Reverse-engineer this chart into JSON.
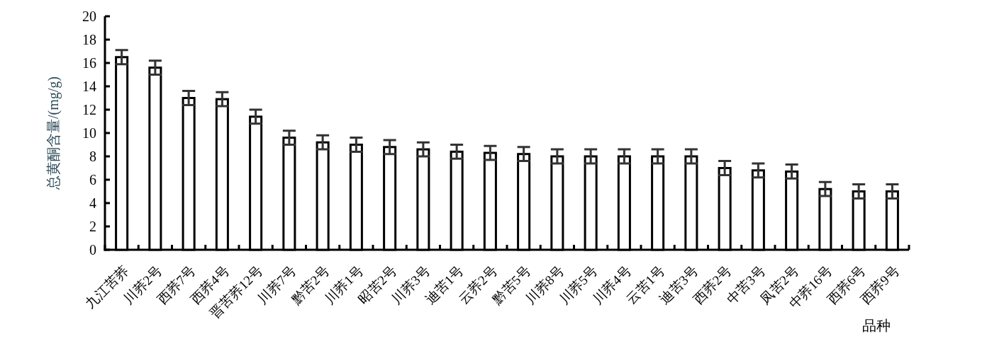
{
  "chart_data": {
    "type": "bar",
    "categories": [
      "九江苦荞",
      "川荞2号",
      "西荞7号",
      "西荞4号",
      "晋苦荞12号",
      "川荞7号",
      "黔苦2号",
      "川荞1号",
      "昭苦2号",
      "川荞3号",
      "迪苦1号",
      "云荞2号",
      "黔苦5号",
      "川荞8号",
      "川荞5号",
      "川荞4号",
      "云苦1号",
      "迪苦3号",
      "西荞2号",
      "中苦3号",
      "凤苦2号",
      "中荞16号",
      "西荞6号",
      "西荞9号"
    ],
    "values": [
      16.5,
      15.6,
      13.0,
      12.9,
      11.4,
      9.6,
      9.2,
      9.0,
      8.8,
      8.6,
      8.4,
      8.3,
      8.2,
      8.0,
      8.0,
      8.0,
      8.0,
      8.0,
      7.0,
      6.8,
      6.7,
      5.2,
      5.0,
      5.0
    ],
    "errors": [
      0.6,
      0.6,
      0.6,
      0.6,
      0.6,
      0.6,
      0.6,
      0.6,
      0.6,
      0.6,
      0.6,
      0.6,
      0.6,
      0.6,
      0.6,
      0.6,
      0.6,
      0.6,
      0.6,
      0.6,
      0.6,
      0.6,
      0.6,
      0.6
    ],
    "color": "#ffffff",
    "xlabel": "品种",
    "ylabel": "总黄酮含量/(mg/g)",
    "ylim": [
      0,
      20
    ],
    "yticks": [
      0,
      2,
      4,
      6,
      8,
      10,
      12,
      14,
      16,
      18,
      20
    ]
  }
}
